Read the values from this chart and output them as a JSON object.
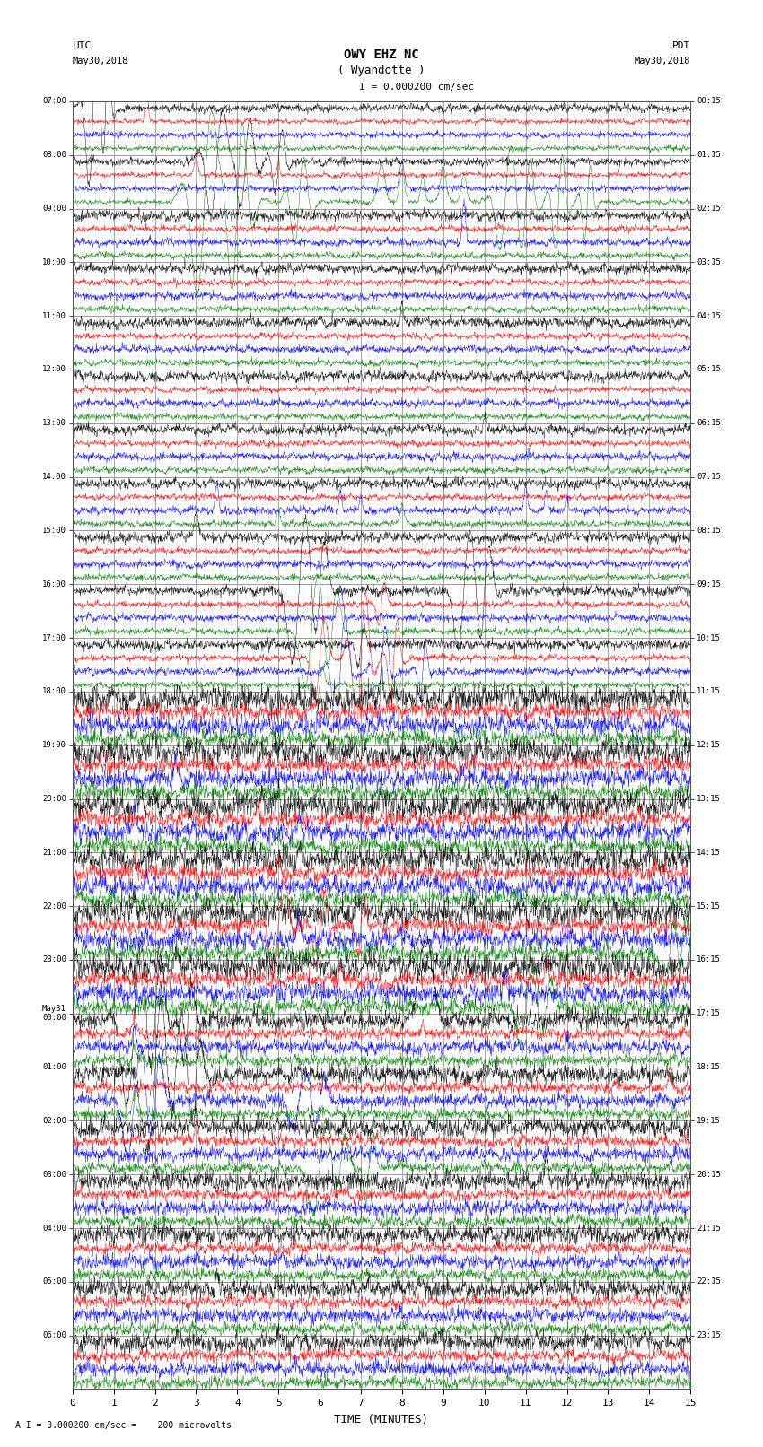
{
  "title_line1": "OWY EHZ NC",
  "title_line2": "( Wyandotte )",
  "scale_label": "I = 0.000200 cm/sec",
  "footer_label": "A I = 0.000200 cm/sec =    200 microvolts",
  "utc_label_line1": "UTC",
  "utc_label_line2": "May30,2018",
  "pdt_label_line1": "PDT",
  "pdt_label_line2": "May30,2018",
  "may31_label": "May31",
  "xlabel": "TIME (MINUTES)",
  "bg_color": "#ffffff",
  "grid_color": "#999999",
  "grid_minor_color": "#cccccc",
  "line_colors": [
    "#000000",
    "#ff0000",
    "#0000ff",
    "#008000"
  ],
  "num_rows": 24,
  "left_labels_utc": [
    "07:00",
    "08:00",
    "09:00",
    "10:00",
    "11:00",
    "12:00",
    "13:00",
    "14:00",
    "15:00",
    "16:00",
    "17:00",
    "18:00",
    "19:00",
    "20:00",
    "21:00",
    "22:00",
    "23:00",
    "May31\n00:00",
    "01:00",
    "02:00",
    "03:00",
    "04:00",
    "05:00",
    "06:00"
  ],
  "right_labels_pdt": [
    "00:15",
    "01:15",
    "02:15",
    "03:15",
    "04:15",
    "05:15",
    "06:15",
    "07:15",
    "08:15",
    "09:15",
    "10:15",
    "11:15",
    "12:15",
    "13:15",
    "14:15",
    "15:15",
    "16:15",
    "17:15",
    "18:15",
    "19:15",
    "20:15",
    "21:15",
    "22:15",
    "23:15"
  ],
  "figsize": [
    8.5,
    16.13
  ],
  "dpi": 100
}
